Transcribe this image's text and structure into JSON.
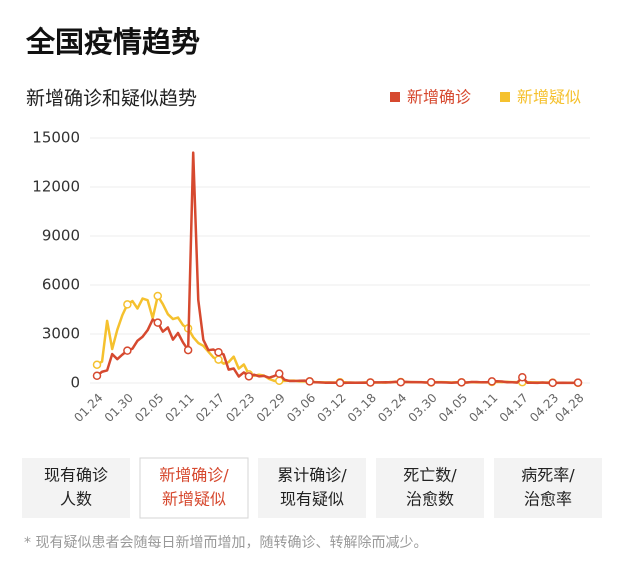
{
  "header": {
    "title": "全国疫情趋势"
  },
  "chart_data": {
    "type": "line",
    "title": "新增确诊和疑似趋势",
    "categories": [
      "01.24",
      null,
      null,
      null,
      null,
      null,
      "01.30",
      null,
      null,
      null,
      null,
      null,
      "02.05",
      null,
      null,
      null,
      null,
      null,
      "02.11",
      null,
      null,
      null,
      null,
      null,
      "02.17",
      null,
      null,
      null,
      null,
      null,
      "02.23",
      null,
      null,
      null,
      null,
      null,
      "02.29",
      null,
      null,
      null,
      null,
      null,
      "03.06",
      null,
      null,
      null,
      null,
      null,
      "03.12",
      null,
      null,
      null,
      null,
      null,
      "03.18",
      null,
      null,
      null,
      null,
      null,
      "03.24",
      null,
      null,
      null,
      null,
      null,
      "03.30",
      null,
      null,
      null,
      null,
      null,
      "04.05",
      null,
      null,
      null,
      null,
      null,
      "04.11",
      null,
      null,
      null,
      null,
      null,
      "04.17",
      null,
      null,
      null,
      null,
      null,
      "04.23",
      null,
      null,
      null,
      null,
      "04.28"
    ],
    "series": [
      {
        "name": "新增确诊",
        "color": "#d6492f",
        "values": [
          444,
          688,
          769,
          1771,
          1459,
          1737,
          1982,
          2102,
          2590,
          2829,
          3235,
          3887,
          3694,
          3143,
          3399,
          2656,
          3062,
          2478,
          2015,
          14108,
          5090,
          2641,
          2009,
          2048,
          1886,
          1749,
          820,
          889,
          397,
          648,
          409,
          508,
          406,
          433,
          327,
          427,
          573,
          202,
          125,
          119,
          139,
          143,
          99,
          44,
          40,
          19,
          24,
          15,
          8,
          11,
          20,
          16,
          21,
          13,
          34,
          39,
          41,
          46,
          39,
          78,
          47,
          67,
          55,
          54,
          45,
          31,
          48,
          36,
          35,
          31,
          19,
          30,
          39,
          32,
          62,
          63,
          42,
          46,
          99,
          108,
          89,
          46,
          46,
          26,
          352,
          16,
          12,
          11,
          30,
          10,
          10,
          6,
          12,
          11,
          6,
          22
        ]
      },
      {
        "name": "新增疑似",
        "color": "#f5c12e",
        "values": [
          1118,
          1309,
          3806,
          2077,
          3248,
          4148,
          4812,
          5019,
          4562,
          5173,
          5072,
          3971,
          5328,
          4833,
          4214,
          3916,
          4008,
          3536,
          3342,
          2807,
          2450,
          2277,
          1918,
          1563,
          1432,
          1185,
          1277,
          1614,
          882,
          1133,
          530,
          439,
          508,
          452,
          248,
          132,
          141,
          129,
          143,
          143,
          102,
          99,
          99,
          61,
          36,
          41,
          33,
          33,
          45,
          45,
          23,
          23,
          15,
          35,
          28,
          32,
          31,
          21,
          64,
          52,
          59,
          57,
          50,
          48,
          52,
          34,
          31,
          54,
          52,
          43,
          28,
          45,
          42,
          34,
          53,
          37,
          48,
          38,
          63,
          72,
          56,
          76,
          54,
          56,
          50,
          52,
          40,
          35,
          24,
          32,
          22,
          18,
          14,
          18,
          16,
          7
        ]
      }
    ],
    "ylim": [
      0,
      15000
    ],
    "yticks": [
      0,
      3000,
      6000,
      9000,
      12000,
      15000
    ],
    "grid": true,
    "legend": "top-right"
  },
  "tabs": [
    {
      "lines": [
        "现有确诊",
        "人数"
      ]
    },
    {
      "lines": [
        "新增确诊/",
        "新增疑似"
      ],
      "selected": true
    },
    {
      "lines": [
        "累计确诊/",
        "现有疑似"
      ]
    },
    {
      "lines": [
        "死亡数/",
        "治愈数"
      ]
    },
    {
      "lines": [
        "病死率/",
        "治愈率"
      ]
    }
  ],
  "footnote": "* 现有疑似患者会随每日新增而增加，随转确诊、转解除而减少。"
}
